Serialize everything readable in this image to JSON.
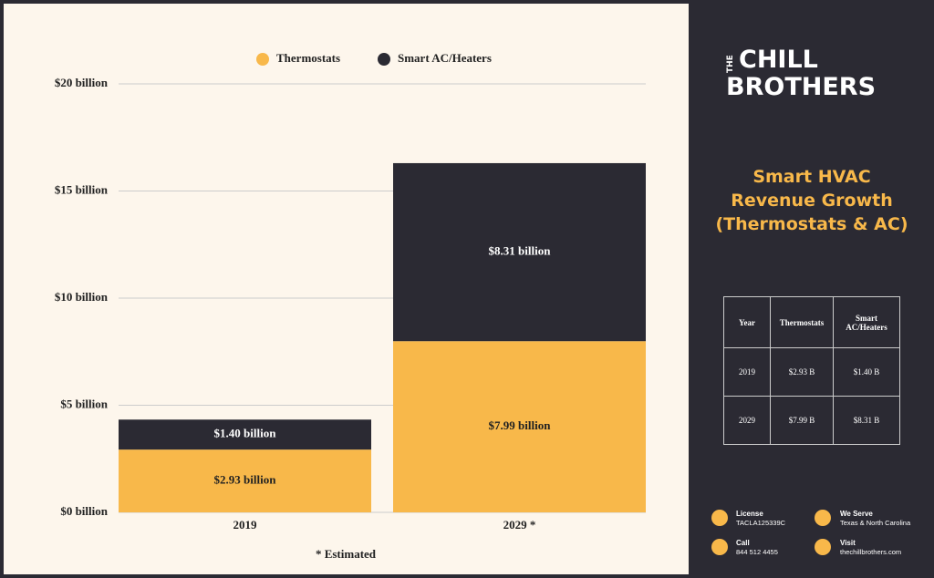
{
  "brand": {
    "top": "THE",
    "line1": "CHILL",
    "line2": "BROTHERS"
  },
  "panel_title": [
    "Smart HVAC",
    "Revenue Growth",
    "(Thermostats & AC)"
  ],
  "table": {
    "header": [
      "Year",
      "Thermostats",
      "Smart AC/Heaters"
    ],
    "rows": [
      [
        "2019",
        "$2.93 B",
        "$1.40 B"
      ],
      [
        "2029",
        "$7.99 B",
        "$8.31 B"
      ]
    ]
  },
  "contact": [
    {
      "label": "License",
      "value": "TACLA125339C"
    },
    {
      "label": "We Serve",
      "value": "Texas & North Carolina"
    },
    {
      "label": "Call",
      "value": "844 512 4455"
    },
    {
      "label": "Visit",
      "value": "thechillbrothers.com"
    }
  ],
  "chart_data": {
    "type": "stacked_bar",
    "categories": [
      "2019",
      "2029 *"
    ],
    "series": [
      {
        "name": "Thermostats",
        "color": "#f8b84a",
        "values": [
          2.93,
          7.99
        ],
        "value_labels": [
          "$2.93 billion",
          "$7.99 billion"
        ]
      },
      {
        "name": "Smart AC/Heaters",
        "color": "#2b2a33",
        "values": [
          1.4,
          8.31
        ],
        "value_labels": [
          "$1.40 billion",
          "$8.31 billion"
        ]
      }
    ],
    "ylim": [
      0,
      20
    ],
    "yticks": [
      {
        "value": 0,
        "label": "$0 billion"
      },
      {
        "value": 5,
        "label": "$5 billion"
      },
      {
        "value": 10,
        "label": "$10 billion"
      },
      {
        "value": 15,
        "label": "$15 billion"
      },
      {
        "value": 20,
        "label": "$20 billion"
      }
    ],
    "grid": true,
    "note": "* Estimated"
  }
}
